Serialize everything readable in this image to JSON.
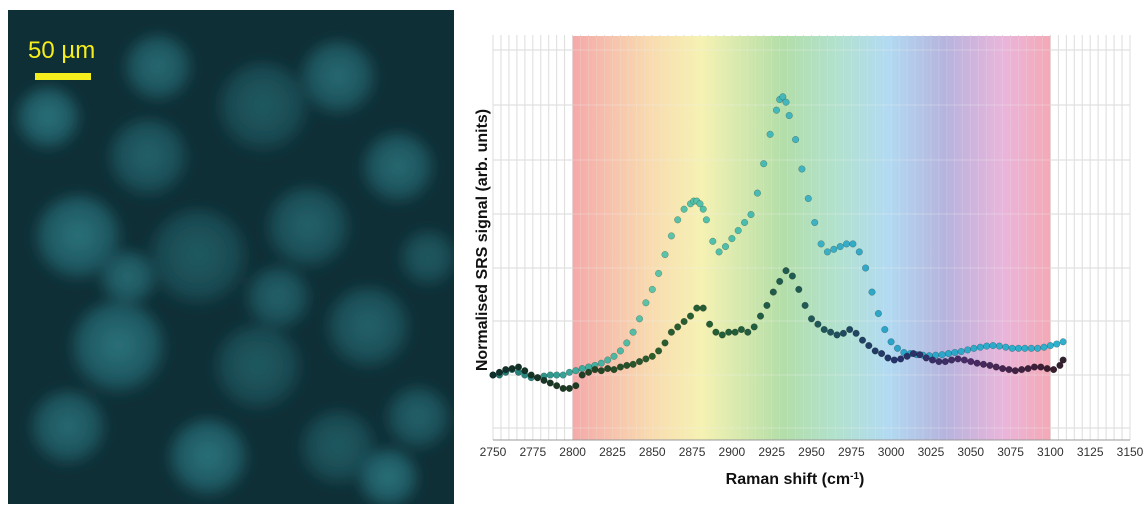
{
  "micrograph": {
    "scale_label": "50 µm",
    "scale_color": "#f5ee1c"
  },
  "chart_data": {
    "type": "scatter",
    "title": "",
    "xlabel_main": "Raman shift (cm",
    "xlabel_sup": "-1",
    "xlabel_tail": ")",
    "ylabel": "Normalised SRS signal (arb. units)",
    "xlim": [
      2750,
      3150
    ],
    "x_ticks": [
      2750,
      2775,
      2800,
      2825,
      2850,
      2875,
      2900,
      2925,
      2950,
      2975,
      3000,
      3025,
      3050,
      3075,
      3100,
      3125,
      3150
    ],
    "ylim": [
      0,
      6
    ],
    "grid": true,
    "highlight_band": [
      2800,
      3100
    ],
    "series": [
      {
        "color_scheme": "spectral-light",
        "x": [
          2750,
          2754,
          2758,
          2762,
          2766,
          2770,
          2774,
          2778,
          2782,
          2786,
          2790,
          2794,
          2798,
          2802,
          2806,
          2810,
          2814,
          2818,
          2822,
          2826,
          2830,
          2834,
          2838,
          2842,
          2846,
          2850,
          2854,
          2858,
          2862,
          2866,
          2870,
          2874,
          2876,
          2878,
          2880,
          2882,
          2884,
          2888,
          2892,
          2896,
          2900,
          2904,
          2908,
          2912,
          2916,
          2920,
          2924,
          2928,
          2930,
          2932,
          2934,
          2936,
          2940,
          2944,
          2948,
          2952,
          2956,
          2960,
          2964,
          2968,
          2972,
          2976,
          2980,
          2984,
          2988,
          2992,
          2996,
          3000,
          3004,
          3008,
          3012,
          3016,
          3020,
          3024,
          3028,
          3032,
          3036,
          3040,
          3044,
          3048,
          3052,
          3056,
          3060,
          3064,
          3068,
          3072,
          3076,
          3080,
          3084,
          3088,
          3092,
          3096,
          3100,
          3104,
          3108
        ],
        "y": [
          0.0,
          0.0,
          0.05,
          0.1,
          0.05,
          0.0,
          -0.05,
          -0.05,
          -0.02,
          0.0,
          0.0,
          0.0,
          0.05,
          0.08,
          0.12,
          0.15,
          0.18,
          0.22,
          0.28,
          0.35,
          0.45,
          0.6,
          0.8,
          1.05,
          1.35,
          1.6,
          1.9,
          2.25,
          2.6,
          2.9,
          3.1,
          3.2,
          3.25,
          3.25,
          3.2,
          3.1,
          2.9,
          2.5,
          2.3,
          2.4,
          2.55,
          2.7,
          2.85,
          3.0,
          3.4,
          3.95,
          4.5,
          4.95,
          5.15,
          5.2,
          5.1,
          4.85,
          4.4,
          3.85,
          3.3,
          2.85,
          2.45,
          2.3,
          2.35,
          2.4,
          2.45,
          2.45,
          2.3,
          2.0,
          1.55,
          1.15,
          0.85,
          0.62,
          0.5,
          0.42,
          0.4,
          0.38,
          0.37,
          0.36,
          0.37,
          0.38,
          0.4,
          0.42,
          0.44,
          0.47,
          0.5,
          0.52,
          0.54,
          0.55,
          0.54,
          0.52,
          0.5,
          0.5,
          0.5,
          0.5,
          0.5,
          0.52,
          0.55,
          0.58,
          0.62
        ]
      },
      {
        "color_scheme": "spectral-dark",
        "x": [
          2750,
          2754,
          2758,
          2762,
          2766,
          2770,
          2774,
          2778,
          2782,
          2786,
          2790,
          2794,
          2798,
          2802,
          2806,
          2810,
          2814,
          2818,
          2822,
          2826,
          2830,
          2834,
          2838,
          2842,
          2846,
          2850,
          2854,
          2858,
          2862,
          2866,
          2870,
          2874,
          2878,
          2882,
          2886,
          2890,
          2894,
          2898,
          2902,
          2906,
          2910,
          2914,
          2918,
          2922,
          2926,
          2930,
          2934,
          2938,
          2942,
          2946,
          2950,
          2954,
          2958,
          2962,
          2966,
          2970,
          2974,
          2978,
          2982,
          2986,
          2990,
          2994,
          2998,
          3002,
          3006,
          3010,
          3014,
          3018,
          3022,
          3026,
          3030,
          3034,
          3038,
          3042,
          3046,
          3050,
          3054,
          3058,
          3062,
          3066,
          3070,
          3074,
          3078,
          3082,
          3086,
          3090,
          3094,
          3098,
          3102,
          3106,
          3108
        ],
        "y": [
          0.0,
          0.05,
          0.1,
          0.12,
          0.15,
          0.08,
          0.0,
          -0.05,
          -0.1,
          -0.15,
          -0.2,
          -0.25,
          -0.25,
          -0.2,
          0.0,
          0.05,
          0.1,
          0.08,
          0.12,
          0.1,
          0.15,
          0.18,
          0.2,
          0.25,
          0.3,
          0.35,
          0.45,
          0.6,
          0.8,
          0.9,
          1.0,
          1.1,
          1.25,
          1.25,
          0.95,
          0.8,
          0.75,
          0.8,
          0.8,
          0.85,
          0.8,
          0.9,
          1.1,
          1.3,
          1.55,
          1.75,
          1.95,
          1.85,
          1.6,
          1.3,
          1.05,
          0.95,
          0.85,
          0.8,
          0.75,
          0.78,
          0.85,
          0.78,
          0.65,
          0.55,
          0.45,
          0.4,
          0.32,
          0.28,
          0.3,
          0.35,
          0.4,
          0.38,
          0.32,
          0.28,
          0.25,
          0.25,
          0.28,
          0.3,
          0.28,
          0.25,
          0.22,
          0.2,
          0.18,
          0.15,
          0.12,
          0.1,
          0.08,
          0.1,
          0.12,
          0.15,
          0.15,
          0.12,
          0.1,
          0.18,
          0.28
        ]
      }
    ]
  }
}
